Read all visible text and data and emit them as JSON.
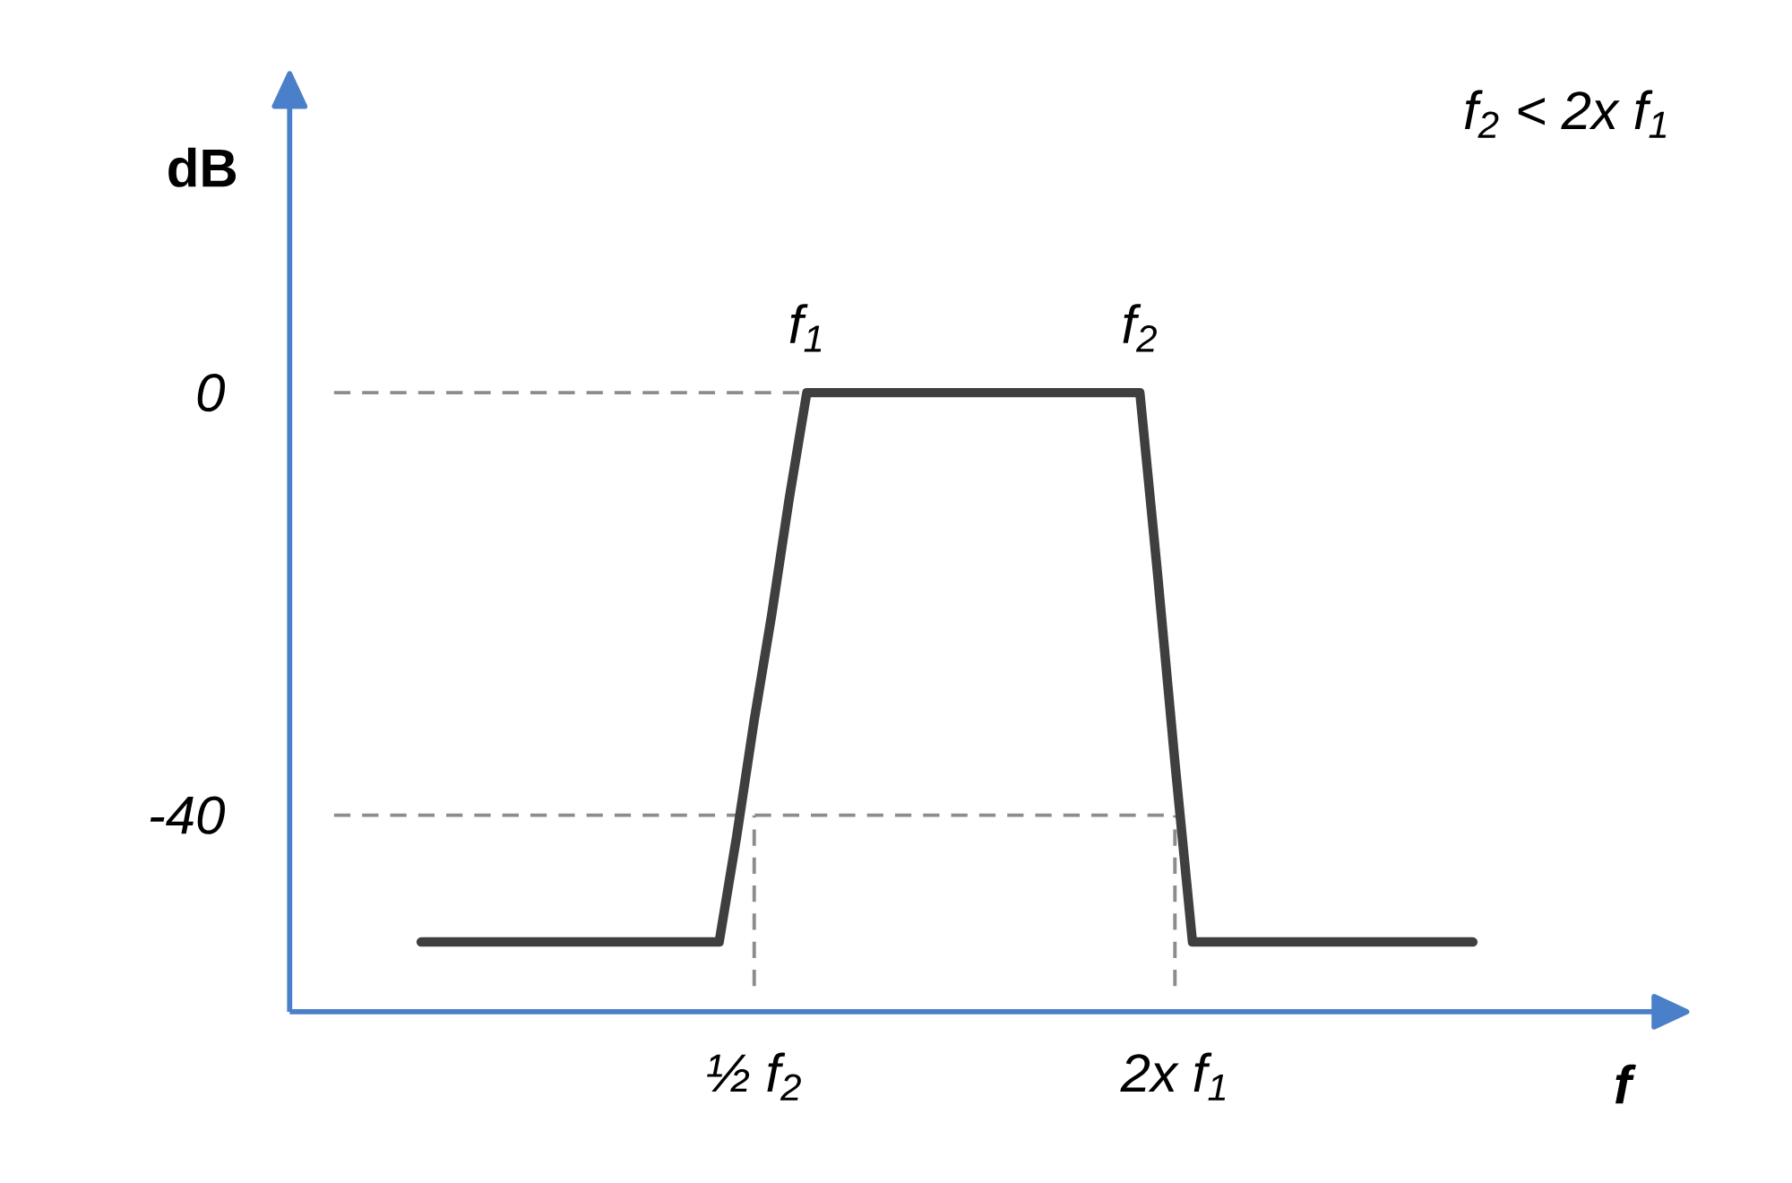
{
  "chart_data": {
    "type": "line",
    "xlabel": "f",
    "ylabel": "dB",
    "categories": [
      null,
      null,
      null,
      null,
      null,
      null,
      null,
      null,
      null,
      null,
      null,
      null,
      null,
      null,
      null,
      null,
      null,
      null,
      null,
      "½ f$_{2}$",
      null,
      null,
      null,
      null,
      null,
      null,
      null,
      null,
      null,
      null,
      null,
      null,
      null,
      null,
      null,
      null,
      null,
      null,
      null,
      null,
      null,
      null,
      null,
      "2x f$_{1}$",
      null,
      null,
      null,
      null,
      null,
      null,
      null,
      null,
      null,
      null,
      null,
      null,
      null,
      null,
      null,
      null,
      null
    ],
    "values": [
      -52,
      -52,
      -52,
      -52,
      -52,
      -52,
      -52,
      -52,
      -52,
      -52,
      -52,
      -52,
      -52,
      -52,
      -52,
      -52,
      -52,
      -52,
      -42,
      -31,
      -21,
      -10,
      0,
      0,
      0,
      0,
      0,
      0,
      0,
      0,
      0,
      0,
      0,
      0,
      0,
      0,
      0,
      0,
      0,
      0,
      0,
      0,
      -17,
      -35,
      -52,
      -52,
      -52,
      -52,
      -52,
      -52,
      -52,
      -52,
      -52,
      -52,
      -52,
      -52,
      -52,
      -52,
      -52,
      -52,
      -52
    ],
    "color": "#3f3f3f",
    "ylim": [
      -58.6,
      30.2
    ],
    "yticks": [
      -40,
      0
    ],
    "ref_lines": [
      {
        "axis": "y",
        "value": 0,
        "color": "#8c8c8c",
        "line_style": "dashed"
      },
      {
        "axis": "y",
        "value": -40,
        "color": "#8c8c8c",
        "line_style": "dashed"
      },
      {
        "axis": "x",
        "value": "½ f$_{2}$",
        "color": "#8c8c8c",
        "line_style": "dashed"
      },
      {
        "axis": "x",
        "value": "2x f$_{1}$",
        "color": "#8c8c8c",
        "line_style": "dashed"
      }
    ],
    "annotations": [
      "f$_{2}$ < 2x f$_{1}$",
      {
        "text": "f$_{1}$",
        "y": 0
      },
      {
        "text": "f$_{2}$",
        "y": 0
      }
    ],
    "grid": false,
    "legend": false,
    "marker": "none",
    "line_style": "solid"
  }
}
